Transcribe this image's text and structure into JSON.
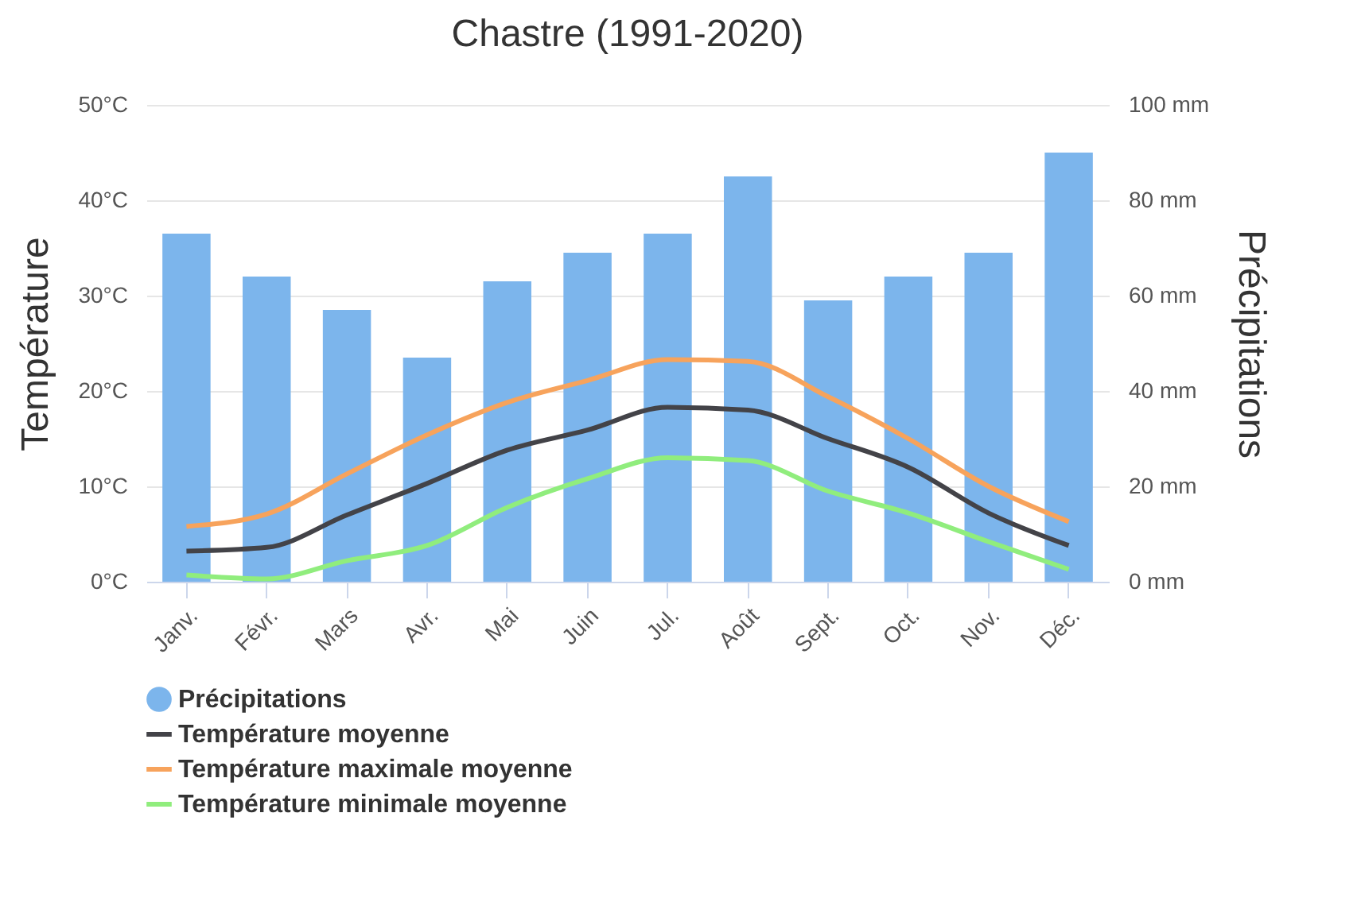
{
  "chart_data": {
    "type": "bar",
    "title": "Chastre (1991-2020)",
    "ylabel": "Température",
    "y2label": "Précipitations",
    "categories": [
      "Janv.",
      "Févr.",
      "Mars",
      "Avr.",
      "Mai",
      "Juin",
      "Jul.",
      "Août",
      "Sept.",
      "Oct.",
      "Nov.",
      "Déc."
    ],
    "series": [
      {
        "name": "Précipitations",
        "axis": "y2",
        "color": "#7cb5ec",
        "values": [
          73,
          64,
          57,
          47,
          63,
          69,
          73,
          85,
          59,
          64,
          69,
          90
        ]
      },
      {
        "name": "Température moyenne",
        "type": "line",
        "axis": "y",
        "color": "#434348",
        "values": [
          3.2,
          3.6,
          7.0,
          10.3,
          13.8,
          15.9,
          18.3,
          18.0,
          15.0,
          12.0,
          7.2,
          3.8
        ]
      },
      {
        "name": "Température maximale moyenne",
        "type": "line",
        "axis": "y",
        "color": "#f7a35c",
        "values": [
          5.8,
          7.1,
          11.3,
          15.4,
          18.8,
          21.1,
          23.3,
          23.1,
          19.4,
          15.0,
          10.0,
          6.3
        ]
      },
      {
        "name": "Température minimale moyenne",
        "type": "line",
        "axis": "y",
        "color": "#90ed7d",
        "values": [
          0.7,
          0.3,
          2.2,
          3.8,
          7.8,
          10.8,
          13.0,
          12.7,
          9.5,
          7.2,
          4.2,
          1.3
        ]
      }
    ],
    "ylim": [
      0,
      50
    ],
    "yticks": [
      {
        "value": 0,
        "label": "0°C"
      },
      {
        "value": 10,
        "label": "10°C"
      },
      {
        "value": 20,
        "label": "20°C"
      },
      {
        "value": 30,
        "label": "30°C"
      },
      {
        "value": 40,
        "label": "40°C"
      },
      {
        "value": 50,
        "label": "50°C"
      }
    ],
    "y2lim": [
      0,
      100
    ],
    "y2ticks": [
      {
        "value": 0,
        "label": "0 mm"
      },
      {
        "value": 20,
        "label": "20 mm"
      },
      {
        "value": 40,
        "label": "40 mm"
      },
      {
        "value": 60,
        "label": "60 mm"
      },
      {
        "value": 80,
        "label": "80 mm"
      },
      {
        "value": 100,
        "label": "100 mm"
      }
    ],
    "grid": "y",
    "legend": "bottom",
    "marker": "none",
    "line_style": "solid"
  }
}
